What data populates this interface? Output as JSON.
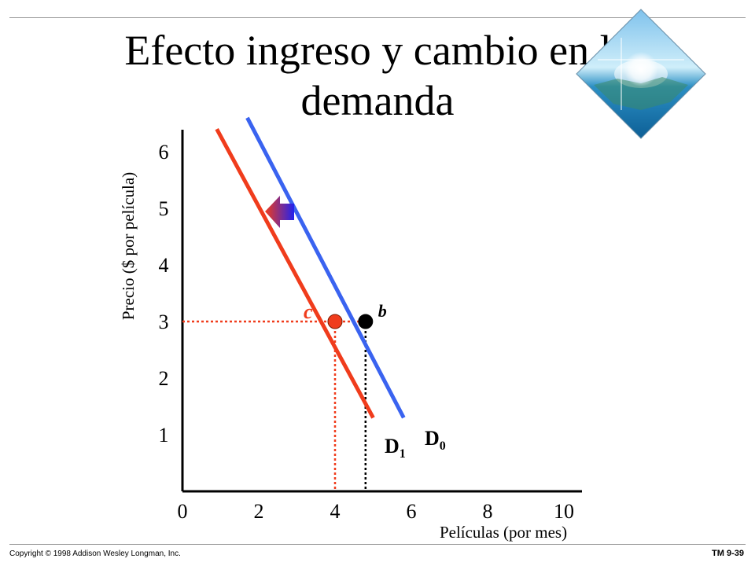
{
  "slide": {
    "title": "Efecto ingreso y cambio en la demanda",
    "copyright": "Copyright © 1998 Addison Wesley Longman, Inc.",
    "slide_number": "TM 9-39"
  },
  "chart_data": {
    "type": "line",
    "xlabel": "Películas (por mes)",
    "ylabel": "Precio ($ por película)",
    "x_ticks": [
      "0",
      "2",
      "4",
      "6",
      "8",
      "10"
    ],
    "y_ticks": [
      "1",
      "2",
      "3",
      "4",
      "5",
      "6"
    ],
    "xlim": [
      0,
      10
    ],
    "ylim": [
      0,
      6
    ],
    "grid": false,
    "series": [
      {
        "name": "D0",
        "color": "#3a63f0",
        "points": [
          [
            1.7,
            6.6
          ],
          [
            5.8,
            1.3
          ]
        ]
      },
      {
        "name": "D1",
        "color": "#f03c1c",
        "points": [
          [
            0.9,
            6.4
          ],
          [
            5.0,
            1.3
          ]
        ]
      }
    ],
    "points": [
      {
        "label": "c",
        "x": 4,
        "y": 3,
        "color": "#f03c1c",
        "label_color": "#f03c1c"
      },
      {
        "label": "b",
        "x": 4.8,
        "y": 3,
        "color": "#000000",
        "label_color": "#000000"
      }
    ],
    "highlight_color": "#f03c1c",
    "highlight_x_tick": "4",
    "highlight_y_tick": "3",
    "shift_arrow": {
      "direction": "left",
      "colors": [
        "#f03c1c",
        "#2222ee"
      ]
    }
  }
}
